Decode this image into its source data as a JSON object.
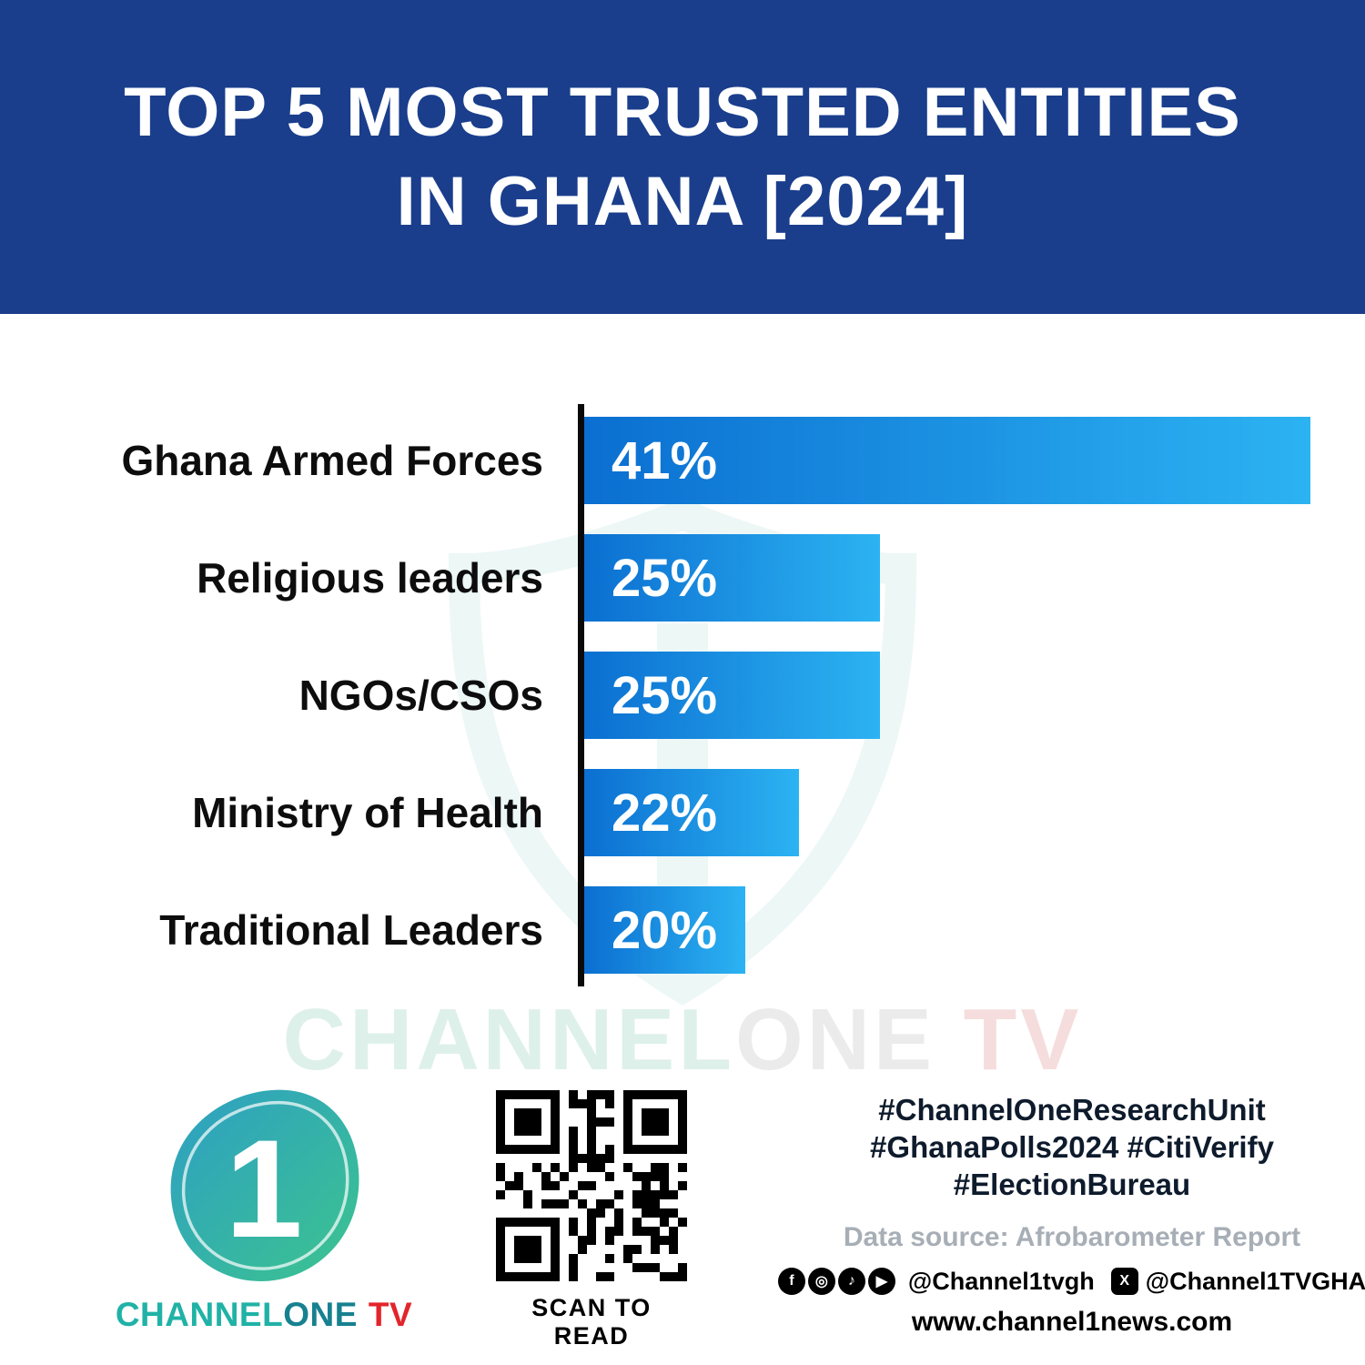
{
  "header": {
    "title_line1": "TOP 5 MOST TRUSTED ENTITIES",
    "title_line2": "IN GHANA [2024]"
  },
  "chart_data": {
    "type": "bar",
    "orientation": "horizontal",
    "title": "Top 5 most trusted entities in Ghana [2024]",
    "categories": [
      "Ghana Armed Forces",
      "Religious leaders",
      "NGOs/CSOs",
      "Ministry of Health",
      "Traditional Leaders"
    ],
    "values": [
      41,
      25,
      25,
      22,
      20
    ],
    "labels": [
      "41%",
      "25%",
      "25%",
      "22%",
      "20%"
    ],
    "xlim": [
      0,
      41
    ],
    "grid": false,
    "legend": false,
    "bar_color_start": "#0b6fd1",
    "bar_color_end": "#2cb3f2"
  },
  "watermark": {
    "part1": "CHANNEL",
    "part2": "ONE",
    "part3": " TV"
  },
  "colors": {
    "header_bg": "#1a3e8c",
    "brand_teal": "#20b2a6",
    "brand_dark_teal": "#17818f",
    "accent_red": "#e3242b",
    "axis_black": "#0a0a0a"
  },
  "footer": {
    "logo": {
      "numeral": "1",
      "channel": "CHANNEL",
      "one": "ONE",
      "tv": "TV"
    },
    "qr_caption": "SCAN TO READ",
    "hashtags_line1": "#ChannelOneResearchUnit",
    "hashtags_line2": "#GhanaPolls2024 #CitiVerify",
    "hashtags_line3": "#ElectionBureau",
    "data_source": "Data source: Afrobarometer Report",
    "social": {
      "handle1": "@Channel1tvgh",
      "handle2": "@Channel1TVGHA"
    },
    "website": "www.channel1news.com"
  }
}
